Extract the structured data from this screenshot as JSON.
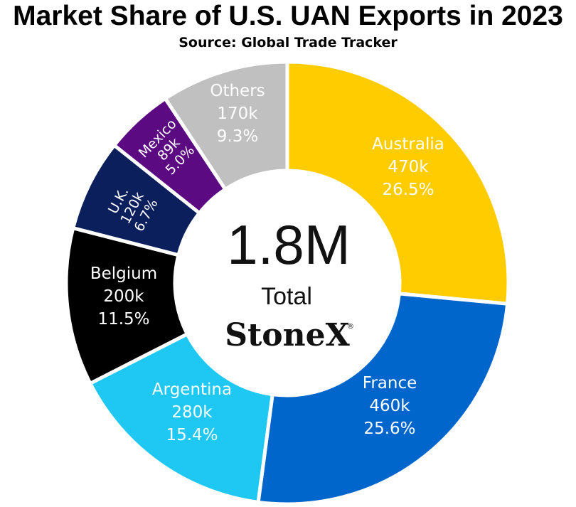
{
  "chart_data": {
    "type": "pie",
    "variant": "donut",
    "title": "Market Share of U.S. UAN Exports in 2023",
    "subtitle": "Source: Global Trade Tracker",
    "slices": [
      {
        "name": "Australia",
        "value_label": "470k",
        "percent_label": "26.5%",
        "percent": 26.5,
        "color": "#FFCC00",
        "text_color": "#FFFFFF"
      },
      {
        "name": "France",
        "value_label": "460k",
        "percent_label": "25.6%",
        "percent": 25.6,
        "color": "#0066CC",
        "text_color": "#FFFFFF"
      },
      {
        "name": "Argentina",
        "value_label": "280k",
        "percent_label": "15.4%",
        "percent": 15.4,
        "color": "#1EC8F2",
        "text_color": "#FFFFFF"
      },
      {
        "name": "Belgium",
        "value_label": "200k",
        "percent_label": "11.5%",
        "percent": 11.5,
        "color": "#000000",
        "text_color": "#FFFFFF"
      },
      {
        "name": "U.K.",
        "value_label": "120k",
        "percent_label": "6.7%",
        "percent": 6.7,
        "color": "#0A1F5C",
        "text_color": "#FFFFFF"
      },
      {
        "name": "Mexico",
        "value_label": "89k",
        "percent_label": "5.0%",
        "percent": 5.0,
        "color": "#5B0A82",
        "text_color": "#FFFFFF"
      },
      {
        "name": "Others",
        "value_label": "170k",
        "percent_label": "9.3%",
        "percent": 9.3,
        "color": "#C0C0C0",
        "text_color": "#FFFFFF"
      }
    ],
    "center": {
      "value": "1.8M",
      "label": "Total"
    },
    "logo": {
      "text": "StoneX",
      "mark": "®"
    }
  }
}
